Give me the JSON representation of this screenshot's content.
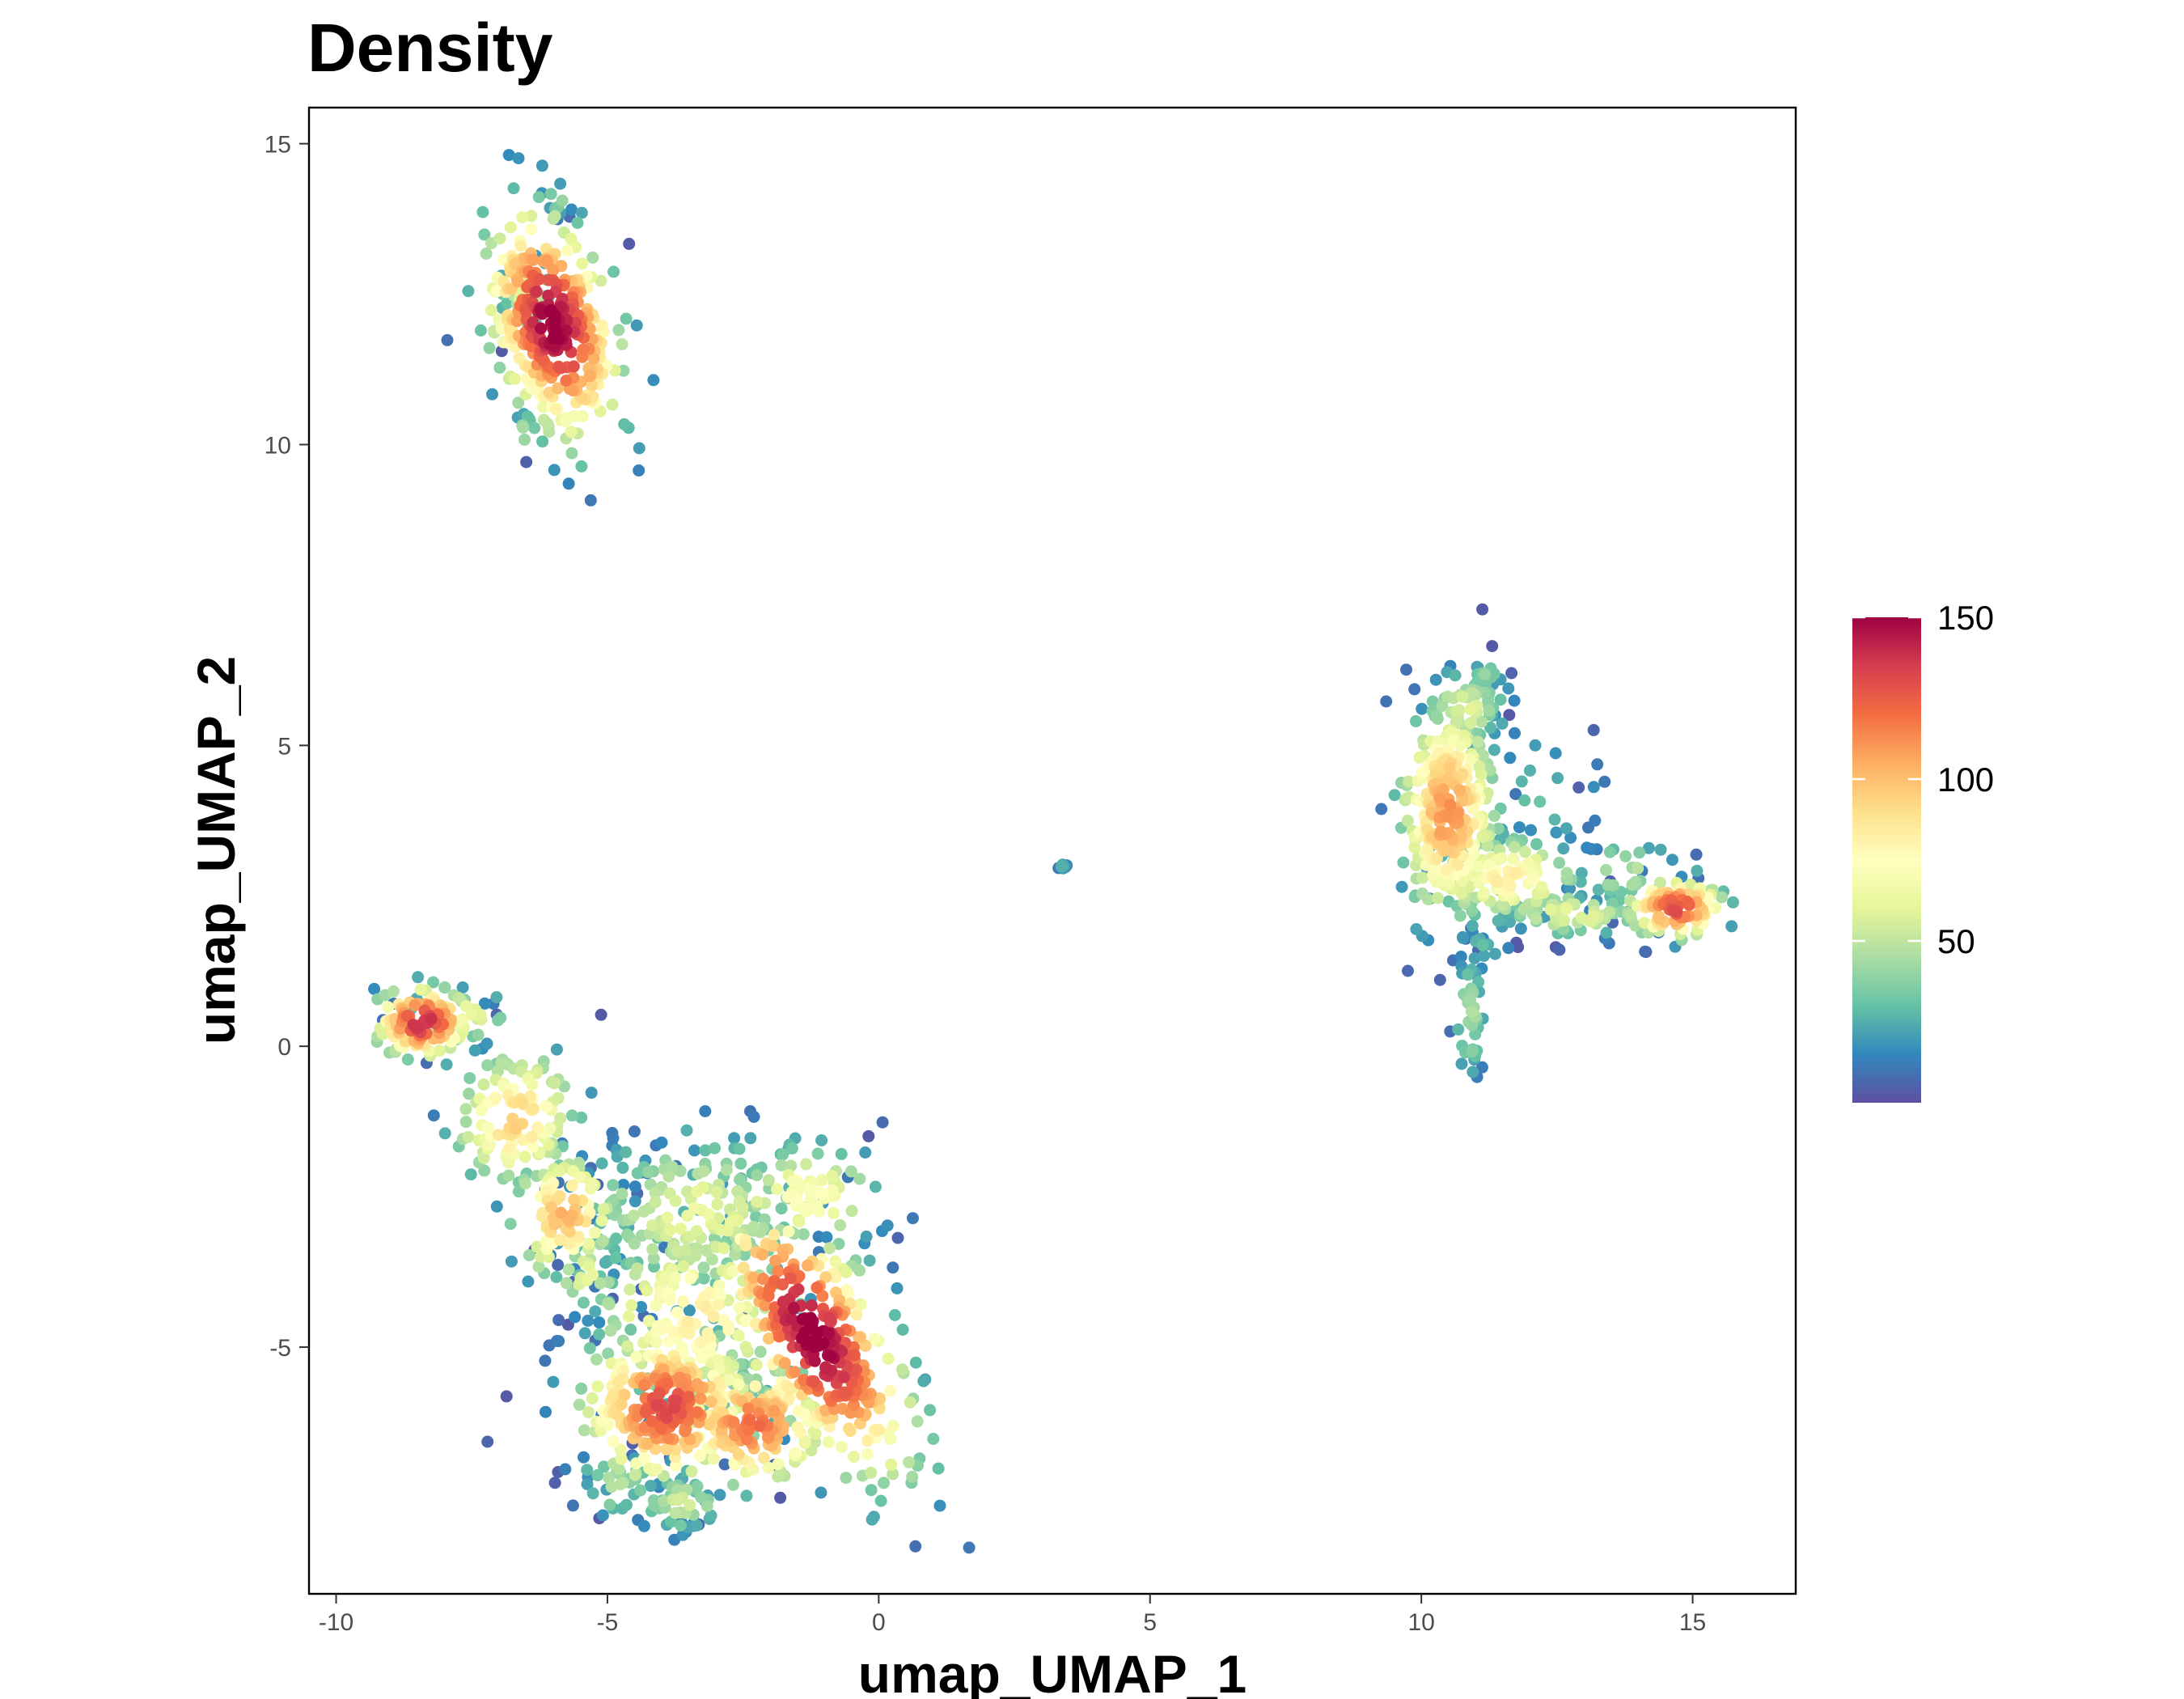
{
  "chart_data": {
    "type": "scatter",
    "title": "Density",
    "xlabel": "umap_UMAP_1",
    "ylabel": "umap_UMAP_2",
    "xlim": [
      -10.5,
      16.9
    ],
    "ylim": [
      -9.1,
      15.6
    ],
    "x_ticks": [
      "-10",
      "-5",
      "0",
      "5",
      "10",
      "15"
    ],
    "y_ticks": [
      "15",
      "10",
      "5",
      "0",
      "-5"
    ],
    "x_tick_values": [
      -10,
      -5,
      0,
      5,
      10,
      15
    ],
    "y_tick_values": [
      15,
      10,
      5,
      0,
      -5
    ],
    "grid": false,
    "color_scale": {
      "name": "Spectral (reversed)",
      "min": 0,
      "max": 150,
      "ticks": [
        "150",
        "100",
        "50"
      ],
      "tick_values": [
        150,
        100,
        50
      ],
      "colors": [
        "#5E4FA2",
        "#3288BD",
        "#66C2A5",
        "#ABDDA4",
        "#E6F598",
        "#FFFFBF",
        "#FEE08B",
        "#FDAE61",
        "#F46D43",
        "#D53E4F",
        "#9E0142"
      ]
    },
    "clusters": [
      {
        "cx": -6.0,
        "cy": 12.0,
        "sx": 0.55,
        "sy": 1.0,
        "rot": 0.35,
        "n": 340,
        "peak": 150
      },
      {
        "cx": -6.5,
        "cy": 12.5,
        "sx": 0.25,
        "sy": 0.35,
        "rot": 0,
        "n": 40,
        "peak": 60
      },
      {
        "cx": -5.9,
        "cy": 14.1,
        "sx": 0.15,
        "sy": 0.15,
        "rot": 0,
        "n": 10,
        "peak": 45
      },
      {
        "cx": -6.5,
        "cy": 10.2,
        "sx": 0.15,
        "sy": 0.2,
        "rot": 0,
        "n": 10,
        "peak": 45
      },
      {
        "cx": -8.4,
        "cy": 0.4,
        "sx": 0.45,
        "sy": 0.3,
        "rot": 0,
        "n": 110,
        "peak": 140
      },
      {
        "cx": -7.8,
        "cy": 0.5,
        "sx": 0.5,
        "sy": 0.25,
        "rot": 0,
        "n": 40,
        "peak": 70
      },
      {
        "cx": -6.7,
        "cy": -1.2,
        "sx": 0.55,
        "sy": 0.6,
        "rot": -0.8,
        "n": 120,
        "peak": 95
      },
      {
        "cx": -5.8,
        "cy": -2.8,
        "sx": 0.5,
        "sy": 0.55,
        "rot": -0.5,
        "n": 100,
        "peak": 100
      },
      {
        "cx": -5.4,
        "cy": -3.8,
        "sx": 0.35,
        "sy": 0.35,
        "rot": 0,
        "n": 30,
        "peak": 60
      },
      {
        "cx": -3.4,
        "cy": -2.8,
        "sx": 1.1,
        "sy": 0.7,
        "rot": 0,
        "n": 170,
        "peak": 62
      },
      {
        "cx": -3.4,
        "cy": -4.5,
        "sx": 1.0,
        "sy": 0.8,
        "rot": 0,
        "n": 170,
        "peak": 82
      },
      {
        "cx": -3.9,
        "cy": -6.0,
        "sx": 0.8,
        "sy": 0.65,
        "rot": 0,
        "n": 260,
        "peak": 130
      },
      {
        "cx": -2.3,
        "cy": -6.3,
        "sx": 0.7,
        "sy": 0.5,
        "rot": 0,
        "n": 150,
        "peak": 120
      },
      {
        "cx": -1.2,
        "cy": -4.8,
        "sx": 0.6,
        "sy": 1.35,
        "rot": 0.6,
        "n": 340,
        "peak": 150
      },
      {
        "cx": -1.3,
        "cy": -2.5,
        "sx": 0.7,
        "sy": 0.45,
        "rot": 0,
        "n": 80,
        "peak": 75
      },
      {
        "cx": -3.6,
        "cy": -7.6,
        "sx": 0.4,
        "sy": 0.25,
        "rot": 0,
        "n": 40,
        "peak": 55
      },
      {
        "cx": -4.8,
        "cy": -7.3,
        "sx": 0.4,
        "sy": 0.3,
        "rot": 0,
        "n": 30,
        "peak": 45
      },
      {
        "cx": -3.5,
        "cy": -7.95,
        "sx": 0.12,
        "sy": 0.08,
        "rot": 0,
        "n": 8,
        "peak": 20
      },
      {
        "cx": -4.7,
        "cy": -1.9,
        "sx": 0.45,
        "sy": 0.3,
        "rot": 0,
        "n": 10,
        "peak": 20
      },
      {
        "cx": -5.3,
        "cy": -4.5,
        "sx": 0.25,
        "sy": 0.4,
        "rot": 0,
        "n": 6,
        "peak": 15
      },
      {
        "cx": 3.4,
        "cy": 3.0,
        "sx": 0.05,
        "sy": 0.04,
        "rot": 0,
        "n": 12,
        "peak": 22
      },
      {
        "cx": 10.5,
        "cy": 3.9,
        "sx": 0.45,
        "sy": 0.9,
        "rot": 0,
        "n": 270,
        "peak": 110
      },
      {
        "cx": 10.8,
        "cy": 5.6,
        "sx": 0.4,
        "sy": 0.35,
        "rot": 0,
        "n": 70,
        "peak": 58
      },
      {
        "cx": 11.2,
        "cy": 6.2,
        "sx": 0.12,
        "sy": 0.12,
        "rot": 0,
        "n": 10,
        "peak": 45
      },
      {
        "cx": 11.6,
        "cy": 2.8,
        "sx": 0.7,
        "sy": 0.35,
        "rot": 0,
        "n": 120,
        "peak": 82
      },
      {
        "cx": 12.8,
        "cy": 2.2,
        "sx": 0.7,
        "sy": 0.2,
        "rot": 0,
        "n": 60,
        "peak": 62
      },
      {
        "cx": 14.7,
        "cy": 2.3,
        "sx": 0.45,
        "sy": 0.25,
        "rot": 0,
        "n": 100,
        "peak": 130
      },
      {
        "cx": 13.8,
        "cy": 2.9,
        "sx": 0.55,
        "sy": 0.3,
        "rot": 0,
        "n": 30,
        "peak": 48
      },
      {
        "cx": 10.9,
        "cy": 0.5,
        "sx": 0.15,
        "sy": 0.55,
        "rot": 0,
        "n": 40,
        "peak": 45
      },
      {
        "cx": 11.0,
        "cy": 1.6,
        "sx": 0.3,
        "sy": 0.2,
        "rot": 0,
        "n": 15,
        "peak": 28
      },
      {
        "cx": 12.3,
        "cy": 4.1,
        "sx": 0.5,
        "sy": 0.6,
        "rot": 0,
        "n": 15,
        "peak": 30
      }
    ],
    "outliers": [
      {
        "x": 12.9,
        "y": 4.3,
        "v": 5
      },
      {
        "x": 13.2,
        "y": 3.75,
        "v": 12
      },
      {
        "x": 13.05,
        "y": 3.3,
        "v": 15
      },
      {
        "x": 12.1,
        "y": 5.0,
        "v": 20
      },
      {
        "x": -8.2,
        "y": -1.15,
        "v": 12
      },
      {
        "x": -5.9,
        "y": -4.55,
        "v": 8
      },
      {
        "x": -5.6,
        "y": -4.5,
        "v": 15
      },
      {
        "x": -5.9,
        "y": -4.9,
        "v": 12
      },
      {
        "x": -4.0,
        "y": -1.6,
        "v": 15
      },
      {
        "x": -4.3,
        "y": -1.9,
        "v": 18
      }
    ]
  }
}
